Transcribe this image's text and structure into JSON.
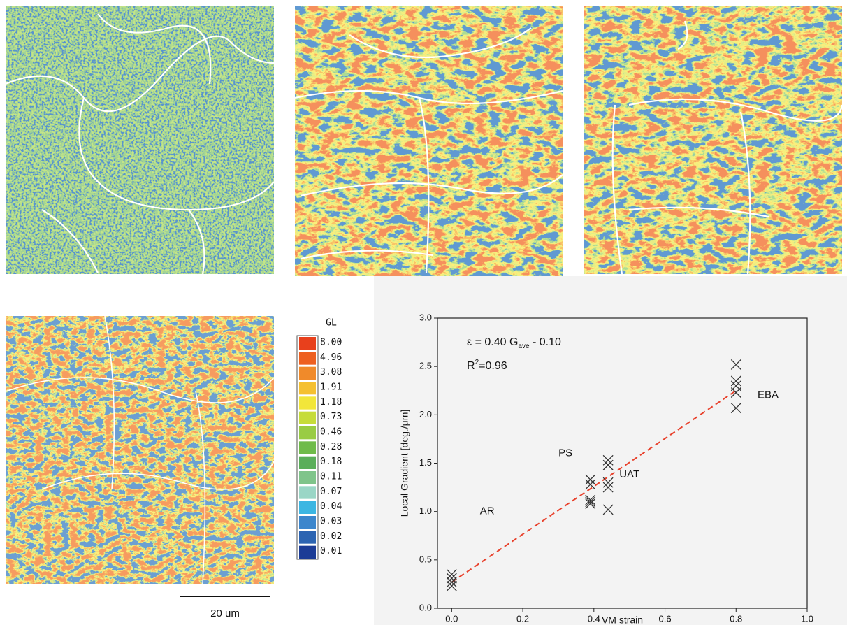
{
  "chart_data": {
    "type": "scatter",
    "xlabel": "VM strain",
    "ylabel": "Local Gradient [deg./μm]",
    "x": [
      0,
      0,
      0,
      0,
      0.39,
      0.39,
      0.39,
      0.39,
      0.39,
      0.44,
      0.44,
      0.44,
      0.44,
      0.44,
      0.8,
      0.8,
      0.8,
      0.8,
      0.8
    ],
    "values": [
      0.35,
      0.31,
      0.27,
      0.23,
      1.33,
      1.28,
      1.12,
      1.1,
      1.08,
      1.53,
      1.48,
      1.3,
      1.25,
      1.02,
      2.52,
      2.35,
      2.3,
      2.23,
      2.07
    ],
    "color": "#333333",
    "fit_line": {
      "x": [
        0,
        0.8
      ],
      "values": [
        0.27,
        2.25
      ],
      "color": "#e8412c"
    },
    "equation": {
      "main": "ε = 0.40 G",
      "sub": "ave",
      "rest": " - 0.10"
    },
    "r2": {
      "main": "R",
      "sup": "2",
      "rest": "=0.96"
    },
    "annotations": [
      "AR",
      "PS",
      "UAT",
      "EBA"
    ],
    "xlim": [
      -0.04,
      1.0
    ],
    "xticks": [
      {
        "value": 0,
        "label": "0.0"
      },
      0.2,
      0.4,
      0.6,
      0.8,
      {
        "value": 1,
        "label": "1.0"
      }
    ],
    "ylim": [
      0,
      3.0
    ],
    "yticks": [
      {
        "value": 0,
        "label": "0.0"
      },
      0.5,
      {
        "value": 1,
        "label": "1.0"
      },
      1.5,
      {
        "value": 2,
        "label": "2.0"
      },
      2.5,
      {
        "value": 3,
        "label": "3.0"
      }
    ]
  },
  "colorbar": {
    "title": "GL",
    "labels": [
      "8.00",
      "4.96",
      "3.08",
      "1.91",
      "1.18",
      "0.73",
      "0.46",
      "0.28",
      "0.18",
      "0.11",
      "0.07",
      "0.04",
      "0.03",
      "0.02",
      "0.01"
    ],
    "colors": [
      "#e8401c",
      "#ee6020",
      "#f08a2a",
      "#f5c030",
      "#f2e63a",
      "#c6dc3a",
      "#99cc44",
      "#6fbb4a",
      "#5aae5a",
      "#7fc48a",
      "#9ad6c6",
      "#3cb6e2",
      "#3c86cc",
      "#2c64b2",
      "#1c3c96"
    ]
  },
  "scale_bar": {
    "label": "20 um"
  }
}
